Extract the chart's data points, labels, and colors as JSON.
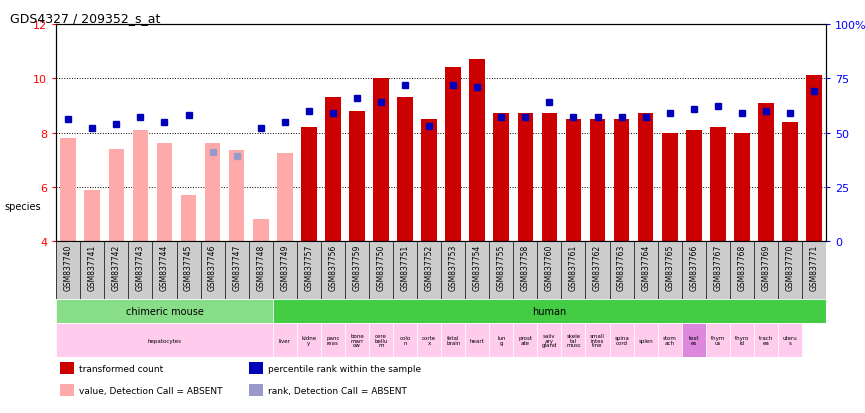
{
  "title": "GDS4327 / 209352_s_at",
  "ylim_left": [
    4,
    12
  ],
  "ylim_right": [
    0,
    100
  ],
  "yticks_left": [
    4,
    6,
    8,
    10,
    12
  ],
  "ytick_labels_left": [
    "4",
    "6",
    "8",
    "10",
    "12"
  ],
  "yticks_right": [
    0,
    25,
    50,
    75,
    100
  ],
  "ytick_labels_right": [
    "0",
    "25",
    "50",
    "75",
    "100%"
  ],
  "samples": [
    "GSM837740",
    "GSM837741",
    "GSM837742",
    "GSM837743",
    "GSM837744",
    "GSM837745",
    "GSM837746",
    "GSM837747",
    "GSM837748",
    "GSM837749",
    "GSM837757",
    "GSM837756",
    "GSM837759",
    "GSM837750",
    "GSM837751",
    "GSM837752",
    "GSM837753",
    "GSM837754",
    "GSM837755",
    "GSM837758",
    "GSM837760",
    "GSM837761",
    "GSM837762",
    "GSM837763",
    "GSM837764",
    "GSM837765",
    "GSM837766",
    "GSM837767",
    "GSM837768",
    "GSM837769",
    "GSM837770",
    "GSM837771"
  ],
  "bar_values": [
    7.8,
    5.9,
    7.4,
    8.1,
    7.6,
    5.7,
    7.6,
    7.35,
    4.8,
    7.25,
    8.2,
    9.3,
    8.8,
    10.0,
    9.3,
    8.5,
    10.4,
    10.7,
    8.7,
    8.7,
    8.7,
    8.5,
    8.5,
    8.5,
    8.7,
    8.0,
    8.1,
    8.2,
    8.0,
    9.1,
    8.4,
    10.1
  ],
  "bar_absent": [
    true,
    true,
    true,
    true,
    true,
    true,
    true,
    true,
    true,
    true,
    false,
    false,
    false,
    false,
    false,
    false,
    false,
    false,
    false,
    false,
    false,
    false,
    false,
    false,
    false,
    false,
    false,
    false,
    false,
    false,
    false,
    false
  ],
  "dot_values_pct": [
    56,
    52,
    54,
    57,
    55,
    58,
    41,
    39,
    52,
    55,
    60,
    59,
    66,
    64,
    72,
    53,
    72,
    71,
    57,
    57,
    64,
    57,
    57,
    57,
    57,
    59,
    61,
    62,
    59,
    60,
    59,
    69
  ],
  "dot_absent": [
    false,
    false,
    false,
    false,
    false,
    false,
    true,
    true,
    false,
    false,
    false,
    false,
    false,
    false,
    false,
    false,
    false,
    false,
    false,
    false,
    false,
    false,
    false,
    false,
    false,
    false,
    false,
    false,
    false,
    false,
    false,
    false
  ],
  "color_bar_present": "#cc0000",
  "color_bar_absent": "#ffaaaa",
  "color_dot_present": "#0000bb",
  "color_dot_absent": "#9999cc",
  "species_regions": [
    {
      "label": "chimeric mouse",
      "start": 0,
      "end": 9,
      "color": "#88dd88"
    },
    {
      "label": "human",
      "start": 9,
      "end": 32,
      "color": "#44cc44"
    }
  ],
  "tissue_regions": [
    {
      "label": "hepatocytes",
      "start": 0,
      "end": 9,
      "color": "#ffccee"
    },
    {
      "label": "liver",
      "start": 9,
      "end": 10,
      "color": "#ffccee"
    },
    {
      "label": "kidne\ny",
      "start": 10,
      "end": 11,
      "color": "#ffccee"
    },
    {
      "label": "panc\nreas",
      "start": 11,
      "end": 12,
      "color": "#ffccee"
    },
    {
      "label": "bone\nmarr\now",
      "start": 12,
      "end": 13,
      "color": "#ffccee"
    },
    {
      "label": "cere\nbellu\nm",
      "start": 13,
      "end": 14,
      "color": "#ffccee"
    },
    {
      "label": "colo\nn",
      "start": 14,
      "end": 15,
      "color": "#ffccee"
    },
    {
      "label": "corte\nx",
      "start": 15,
      "end": 16,
      "color": "#ffccee"
    },
    {
      "label": "fetal\nbrain",
      "start": 16,
      "end": 17,
      "color": "#ffccee"
    },
    {
      "label": "heart",
      "start": 17,
      "end": 18,
      "color": "#ffccee"
    },
    {
      "label": "lun\ng",
      "start": 18,
      "end": 19,
      "color": "#ffccee"
    },
    {
      "label": "prost\nate",
      "start": 19,
      "end": 20,
      "color": "#ffccee"
    },
    {
      "label": "saliv\nary\ngland",
      "start": 20,
      "end": 21,
      "color": "#ffccee"
    },
    {
      "label": "skele\ntal\nmusc",
      "start": 21,
      "end": 22,
      "color": "#ffccee"
    },
    {
      "label": "small\nintes\ntine",
      "start": 22,
      "end": 23,
      "color": "#ffccee"
    },
    {
      "label": "spina\ncord",
      "start": 23,
      "end": 24,
      "color": "#ffccee"
    },
    {
      "label": "splen",
      "start": 24,
      "end": 25,
      "color": "#ffccee"
    },
    {
      "label": "stom\nach",
      "start": 25,
      "end": 26,
      "color": "#ffccee"
    },
    {
      "label": "test\nes",
      "start": 26,
      "end": 27,
      "color": "#dd88dd"
    },
    {
      "label": "thym\nus",
      "start": 27,
      "end": 28,
      "color": "#ffccee"
    },
    {
      "label": "thyro\nid",
      "start": 28,
      "end": 29,
      "color": "#ffccee"
    },
    {
      "label": "trach\nea",
      "start": 29,
      "end": 30,
      "color": "#ffccee"
    },
    {
      "label": "uteru\ns",
      "start": 30,
      "end": 31,
      "color": "#ffccee"
    }
  ],
  "legend_items": [
    {
      "label": "transformed count",
      "color": "#cc0000"
    },
    {
      "label": "percentile rank within the sample",
      "color": "#0000bb"
    },
    {
      "label": "value, Detection Call = ABSENT",
      "color": "#ffaaaa"
    },
    {
      "label": "rank, Detection Call = ABSENT",
      "color": "#9999cc"
    }
  ],
  "bg_color": "#ffffff",
  "plot_bg": "#ffffff",
  "grid_color": "#000000",
  "xlabel_area_bg": "#cccccc"
}
